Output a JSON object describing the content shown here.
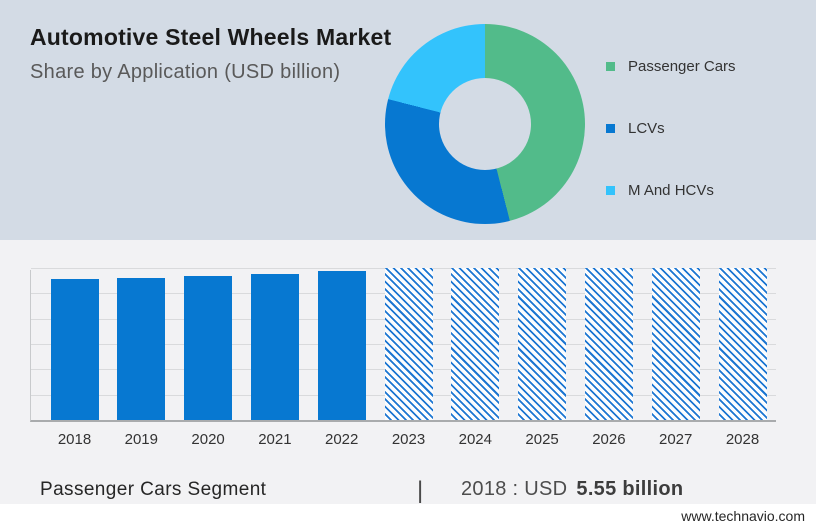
{
  "header": {
    "title": "Automotive Steel Wheels Market",
    "subtitle": "Share by Application (USD billion)"
  },
  "colors": {
    "panel_top_bg": "#d3dbe5",
    "panel_bottom_bg": "#f2f2f4",
    "green": "#52bb8a",
    "blue": "#0778d1",
    "light_blue": "#33c3fc",
    "gridline": "#d9dadc",
    "baseline": "#a9abad"
  },
  "chart_data": [
    {
      "type": "pie",
      "donut": true,
      "title": "Share by Application (USD billion)",
      "labels": [
        "Passenger Cars",
        "LCVs",
        "M And HCVs"
      ],
      "values_pct": [
        46,
        33,
        21
      ],
      "colors": [
        "#52bb8a",
        "#0778d1",
        "#33c3fc"
      ],
      "start_angle_deg": 0,
      "legend_position": "right"
    },
    {
      "type": "bar",
      "x": [
        "2018",
        "2019",
        "2020",
        "2021",
        "2022",
        "2023",
        "2024",
        "2025",
        "2026",
        "2027",
        "2028"
      ],
      "values": [
        5.55,
        5.62,
        5.68,
        5.78,
        5.9,
        6,
        6,
        6,
        6,
        6,
        6
      ],
      "hatched": [
        false,
        false,
        false,
        false,
        false,
        true,
        true,
        true,
        true,
        true,
        true
      ],
      "ylim": [
        0,
        6
      ],
      "gridline_step": 1,
      "grid": true,
      "bar_color": "#0778d1",
      "hatch_color": "#1c76d2",
      "xlabel": "",
      "ylabel": ""
    }
  ],
  "legend": {
    "items": [
      {
        "label": "Passenger Cars",
        "color": "#52bb8a"
      },
      {
        "label": "LCVs",
        "color": "#0778d1"
      },
      {
        "label": "M And HCVs",
        "color": "#33c3fc"
      }
    ]
  },
  "footer": {
    "segment_label": "Passenger Cars Segment",
    "separator": "|",
    "stat_prefix": "2018 : USD",
    "stat_value": "5.55 billion",
    "website": "www.technavio.com"
  }
}
